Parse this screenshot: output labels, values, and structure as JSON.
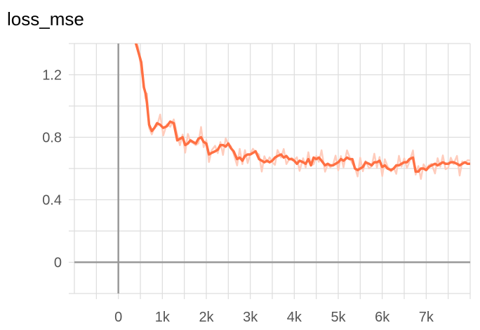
{
  "chart_data": {
    "type": "line",
    "title": "loss_mse",
    "xlabel": "",
    "ylabel": "",
    "xlim": [
      -1000,
      8000
    ],
    "ylim": [
      -0.2,
      1.4
    ],
    "x_ticks": [
      0,
      1000,
      2000,
      3000,
      4000,
      5000,
      6000,
      7000
    ],
    "x_tick_labels": [
      "0",
      "1k",
      "2k",
      "3k",
      "4k",
      "5k",
      "6k",
      "7k"
    ],
    "y_ticks": [
      0,
      0.4,
      0.8,
      1.2
    ],
    "y_tick_labels": [
      "0",
      "0.4",
      "0.8",
      "1.2"
    ],
    "grid": true,
    "colors": {
      "smoothed": "#ff7043",
      "raw": "#ffccbc",
      "grid": "#dddddd",
      "axis": "#999999"
    },
    "series": [
      {
        "values_x": [
          400,
          450,
          520,
          580,
          620,
          650,
          700,
          760,
          820,
          880,
          950,
          1020,
          1100,
          1180,
          1260,
          1340,
          1400,
          1460,
          1520,
          1580,
          1640,
          1700,
          1760,
          1820,
          1880,
          1940,
          2000,
          2060,
          2120,
          2200,
          2260,
          2320,
          2380,
          2440,
          2500,
          2560,
          2620,
          2700,
          2760,
          2820,
          2880,
          2940,
          3000,
          3060,
          3120,
          3200,
          3260,
          3320,
          3380,
          3440,
          3500,
          3560,
          3620,
          3700,
          3760,
          3820,
          3880,
          3940,
          4000,
          4060,
          4120,
          4200,
          4260,
          4320,
          4380,
          4440,
          4500,
          4560,
          4620,
          4700,
          4760,
          4820,
          4880,
          4940,
          5000,
          5060,
          5120,
          5200,
          5260,
          5320,
          5380,
          5440,
          5500,
          5560,
          5620,
          5700,
          5760,
          5820,
          5880,
          5940,
          6000,
          6060,
          6120,
          6200,
          6260,
          6320,
          6380,
          6440,
          6500,
          6560,
          6620,
          6700,
          6760,
          6820,
          6880,
          6940,
          7000,
          7060,
          7120,
          7200,
          7260,
          7320,
          7380,
          7440,
          7500,
          7560,
          7620,
          7700,
          7760,
          7820,
          7880,
          7940,
          8000
        ],
        "values": [
          1.4,
          1.35,
          1.28,
          1.12,
          1.08,
          1.02,
          0.88,
          0.84,
          0.86,
          0.89,
          0.88,
          0.86,
          0.87,
          0.9,
          0.89,
          0.78,
          0.79,
          0.8,
          0.75,
          0.76,
          0.78,
          0.77,
          0.76,
          0.79,
          0.8,
          0.77,
          0.76,
          0.69,
          0.7,
          0.71,
          0.72,
          0.75,
          0.75,
          0.74,
          0.76,
          0.73,
          0.71,
          0.66,
          0.67,
          0.65,
          0.68,
          0.69,
          0.69,
          0.7,
          0.71,
          0.66,
          0.65,
          0.64,
          0.65,
          0.64,
          0.65,
          0.67,
          0.68,
          0.69,
          0.67,
          0.68,
          0.66,
          0.66,
          0.65,
          0.63,
          0.65,
          0.64,
          0.63,
          0.66,
          0.62,
          0.67,
          0.66,
          0.67,
          0.65,
          0.62,
          0.63,
          0.62,
          0.62,
          0.63,
          0.64,
          0.66,
          0.65,
          0.67,
          0.66,
          0.66,
          0.6,
          0.59,
          0.6,
          0.61,
          0.64,
          0.63,
          0.62,
          0.64,
          0.64,
          0.65,
          0.61,
          0.62,
          0.6,
          0.59,
          0.6,
          0.62,
          0.62,
          0.63,
          0.64,
          0.64,
          0.66,
          0.67,
          0.58,
          0.58,
          0.6,
          0.6,
          0.59,
          0.61,
          0.62,
          0.63,
          0.62,
          0.63,
          0.64,
          0.63,
          0.63,
          0.64,
          0.64,
          0.63,
          0.62,
          0.63,
          0.64,
          0.63,
          0.63
        ]
      }
    ]
  }
}
